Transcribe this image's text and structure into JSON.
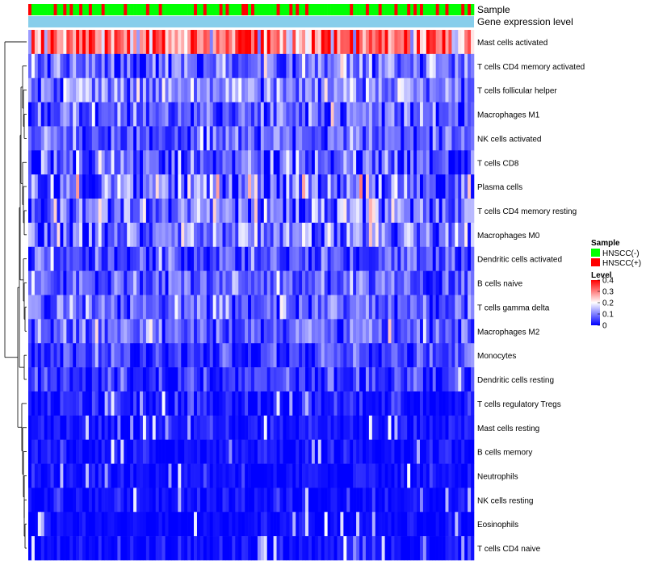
{
  "chart_data": {
    "type": "heatmap",
    "title": "",
    "annotation_rows": [
      "Sample",
      "Gene expression level"
    ],
    "rows": [
      {
        "label": "Mast cells activated",
        "mean": 0.3,
        "sd": 0.09
      },
      {
        "label": "T cells CD4 memory activated",
        "mean": 0.08,
        "sd": 0.06
      },
      {
        "label": "T cells follicular helper",
        "mean": 0.11,
        "sd": 0.05
      },
      {
        "label": "Macrophages M1",
        "mean": 0.07,
        "sd": 0.05
      },
      {
        "label": "NK cells activated",
        "mean": 0.07,
        "sd": 0.05
      },
      {
        "label": "T cells CD8",
        "mean": 0.06,
        "sd": 0.06
      },
      {
        "label": "Plasma cells",
        "mean": 0.1,
        "sd": 0.08
      },
      {
        "label": "T cells CD4 memory resting",
        "mean": 0.09,
        "sd": 0.07
      },
      {
        "label": "Macrophages M0",
        "mean": 0.1,
        "sd": 0.07
      },
      {
        "label": "Dendritic cells activated",
        "mean": 0.06,
        "sd": 0.05
      },
      {
        "label": "B cells naive",
        "mean": 0.07,
        "sd": 0.05
      },
      {
        "label": "T cells gamma delta",
        "mean": 0.07,
        "sd": 0.05
      },
      {
        "label": "Macrophages M2",
        "mean": 0.08,
        "sd": 0.05
      },
      {
        "label": "Monocytes",
        "mean": 0.05,
        "sd": 0.04
      },
      {
        "label": "Dendritic cells resting",
        "mean": 0.04,
        "sd": 0.04
      },
      {
        "label": "T cells regulatory  Tregs",
        "mean": 0.02,
        "sd": 0.03
      },
      {
        "label": "Mast cells resting",
        "mean": 0.01,
        "sd": 0.02
      },
      {
        "label": "B cells memory",
        "mean": 0.01,
        "sd": 0.02
      },
      {
        "label": "Neutrophils",
        "mean": 0.01,
        "sd": 0.02
      },
      {
        "label": "NK cells resting",
        "mean": 0.01,
        "sd": 0.02
      },
      {
        "label": "Eosinophils",
        "mean": 0.005,
        "sd": 0.015
      },
      {
        "label": "T cells CD4 naive",
        "mean": 0.01,
        "sd": 0.02
      }
    ],
    "n_samples": 140,
    "sample_groups": [
      "HNSCC(-)",
      "HNSCC(+)"
    ],
    "value_range": [
      0,
      0.4
    ],
    "colors": {
      "low": "#0000ff",
      "mid": "#ffffff",
      "high": "#ff0000",
      "hnscc_neg": "#00ff00",
      "hnscc_pos": "#ff0000",
      "expression_bar": "#87ceeb"
    },
    "legend": {
      "sample_title": "Sample",
      "sample_entries": [
        "HNSCC(-)",
        "HNSCC(+)"
      ],
      "level_title": "Level",
      "level_ticks": [
        "0.4",
        "0.3",
        "0.2",
        "0.1",
        "0"
      ],
      "level_values": [
        0.4,
        0.3,
        0.2,
        0.1,
        0
      ],
      "placement": "right"
    }
  }
}
